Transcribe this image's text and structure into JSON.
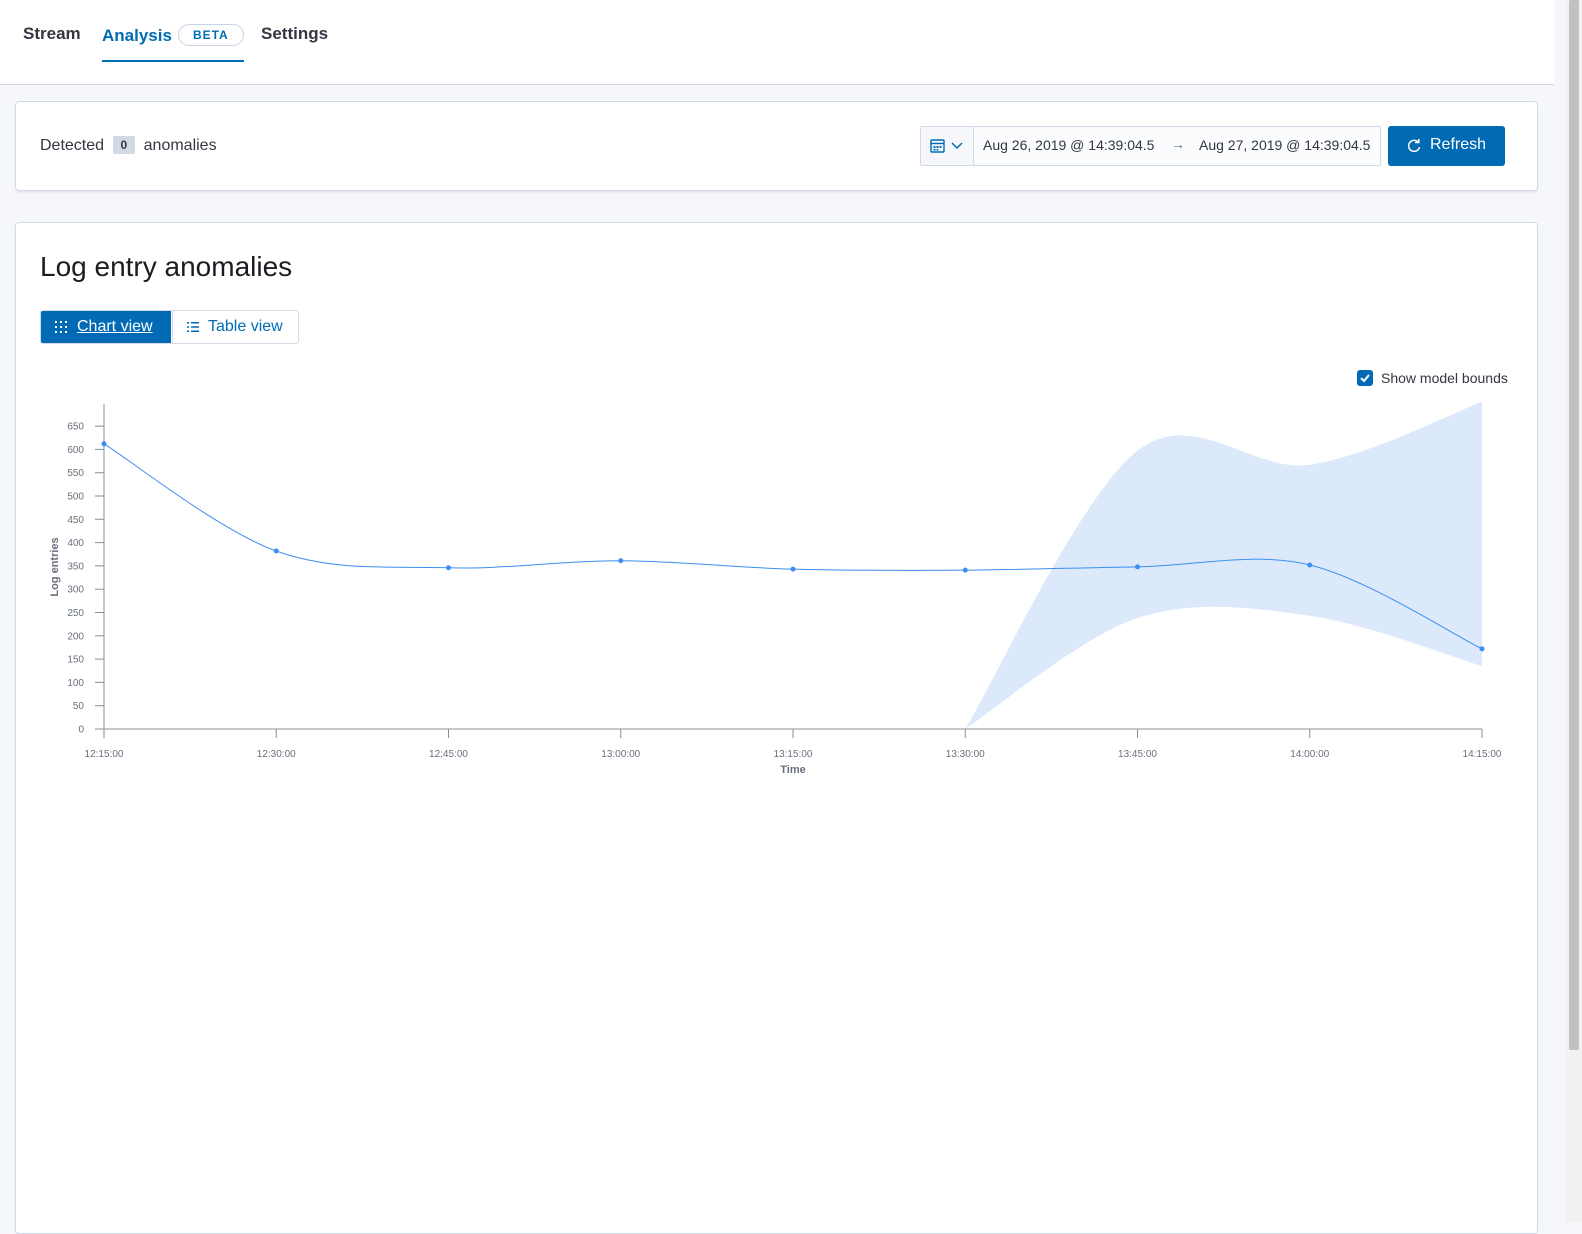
{
  "nav": {
    "tabs": [
      {
        "label": "Stream"
      },
      {
        "label": "Analysis",
        "badge": "BETA"
      },
      {
        "label": "Settings"
      }
    ],
    "active": "Analysis"
  },
  "summary": {
    "prefix": "Detected",
    "count": "0",
    "suffix": "anomalies"
  },
  "datepicker": {
    "start": "Aug 26, 2019 @ 14:39:04.5",
    "arrow": "→",
    "end": "Aug 27, 2019 @ 14:39:04.5"
  },
  "refresh_label": "Refresh",
  "panel": {
    "title": "Log entry anomalies",
    "views": {
      "chart": "Chart view",
      "table": "Table view"
    },
    "active_view": "chart",
    "show_bounds_label": "Show model bounds",
    "show_bounds_checked": true
  },
  "colors": {
    "accent": "#006bb4",
    "line": "#3c8ff0",
    "band": "#dbe9fb"
  },
  "chart_data": {
    "type": "line",
    "xlabel": "Time",
    "ylabel": "Log entries",
    "ylim": [
      0,
      700
    ],
    "yticks": [
      0,
      50,
      100,
      150,
      200,
      250,
      300,
      350,
      400,
      450,
      500,
      550,
      600,
      650
    ],
    "categories": [
      "12:15:00",
      "12:30:00",
      "12:45:00",
      "13:00:00",
      "13:15:00",
      "13:30:00",
      "13:45:00",
      "14:00:00",
      "14:15:00"
    ],
    "series": [
      {
        "values": [
          612,
          382,
          346,
          361,
          343,
          341,
          348,
          352,
          172
        ]
      }
    ],
    "model_bounds": {
      "upper": [
        null,
        null,
        null,
        null,
        null,
        0,
        597,
        567,
        702
      ],
      "lower": [
        null,
        null,
        null,
        null,
        null,
        0,
        238,
        243,
        135
      ]
    },
    "grid": false
  }
}
